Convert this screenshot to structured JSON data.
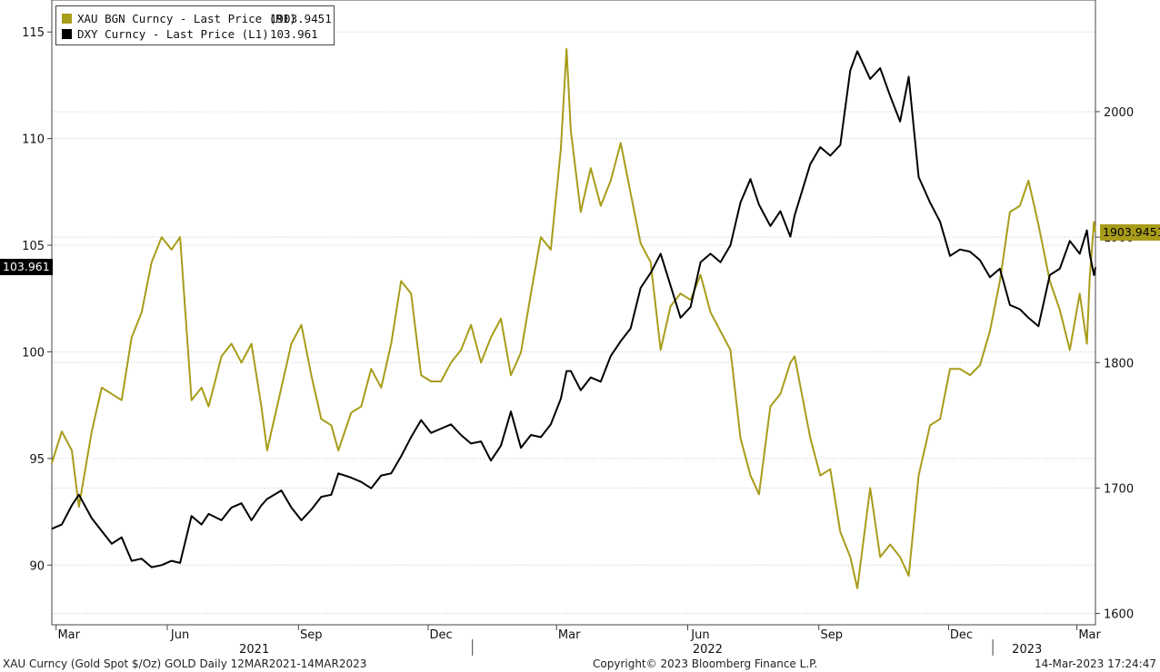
{
  "legend": [
    {
      "name": "XAU BGN Curncy - Last Price (R1)",
      "value": "1903.9451",
      "color": "#a89c1a"
    },
    {
      "name": "DXY Curncy - Last Price (L1)",
      "value": "103.961",
      "color": "#000000"
    }
  ],
  "footer": {
    "left": "XAU Curncy (Gold Spot  $/Oz) GOLD  Daily 12MAR2021-14MAR2023",
    "center": "Copyright© 2023 Bloomberg Finance L.P.",
    "right": "14-Mar-2023 17:24:47"
  },
  "chart_data": {
    "type": "line",
    "x_range": [
      "2021-03-12",
      "2023-03-14"
    ],
    "y_left": {
      "range": [
        87.2,
        116.5
      ],
      "ticks": [
        90,
        95,
        100,
        105,
        110,
        115
      ]
    },
    "y_right": {
      "range": [
        1591,
        2089
      ],
      "ticks": [
        1600,
        1700,
        1800,
        1900,
        2000
      ]
    },
    "x_ticks": [
      {
        "label": "Mar",
        "date": "2021-03-15"
      },
      {
        "label": "Jun",
        "date": "2021-06-01"
      },
      {
        "label": "Sep",
        "date": "2021-09-01"
      },
      {
        "label": "Dec",
        "date": "2021-12-01"
      },
      {
        "label": "Mar",
        "date": "2022-03-01"
      },
      {
        "label": "Jun",
        "date": "2022-06-01"
      },
      {
        "label": "Sep",
        "date": "2022-09-01"
      },
      {
        "label": "Dec",
        "date": "2022-12-01"
      },
      {
        "label": "Mar",
        "date": "2023-03-01"
      }
    ],
    "years": [
      {
        "label": "2021",
        "date": "2021-08-01"
      },
      {
        "label": "2022",
        "date": "2022-06-15"
      },
      {
        "label": "2023",
        "date": "2023-01-25"
      }
    ],
    "year_dividers": [
      "2022-01-01",
      "2023-01-01"
    ],
    "last_values": {
      "gold": "1903.9451",
      "dxy": "103.961"
    },
    "series": [
      {
        "name": "XAU BGN Curncy - Last Price (R1)",
        "axis": "right",
        "color": "#a89c1a",
        "points": [
          [
            "2021-03-12",
            1720
          ],
          [
            "2021-03-19",
            1745
          ],
          [
            "2021-03-26",
            1730
          ],
          [
            "2021-03-31",
            1685
          ],
          [
            "2021-04-09",
            1745
          ],
          [
            "2021-04-16",
            1780
          ],
          [
            "2021-04-23",
            1775
          ],
          [
            "2021-04-30",
            1770
          ],
          [
            "2021-05-07",
            1820
          ],
          [
            "2021-05-14",
            1840
          ],
          [
            "2021-05-21",
            1880
          ],
          [
            "2021-05-28",
            1900
          ],
          [
            "2021-06-04",
            1890
          ],
          [
            "2021-06-10",
            1900
          ],
          [
            "2021-06-18",
            1770
          ],
          [
            "2021-06-25",
            1780
          ],
          [
            "2021-06-30",
            1765
          ],
          [
            "2021-07-09",
            1805
          ],
          [
            "2021-07-16",
            1815
          ],
          [
            "2021-07-23",
            1800
          ],
          [
            "2021-07-30",
            1815
          ],
          [
            "2021-08-06",
            1765
          ],
          [
            "2021-08-10",
            1730
          ],
          [
            "2021-08-20",
            1780
          ],
          [
            "2021-08-27",
            1815
          ],
          [
            "2021-09-03",
            1830
          ],
          [
            "2021-09-10",
            1790
          ],
          [
            "2021-09-17",
            1755
          ],
          [
            "2021-09-24",
            1750
          ],
          [
            "2021-09-29",
            1730
          ],
          [
            "2021-10-08",
            1760
          ],
          [
            "2021-10-15",
            1765
          ],
          [
            "2021-10-22",
            1795
          ],
          [
            "2021-10-29",
            1780
          ],
          [
            "2021-11-05",
            1815
          ],
          [
            "2021-11-12",
            1865
          ],
          [
            "2021-11-19",
            1855
          ],
          [
            "2021-11-26",
            1790
          ],
          [
            "2021-12-03",
            1785
          ],
          [
            "2021-12-10",
            1785
          ],
          [
            "2021-12-17",
            1800
          ],
          [
            "2021-12-24",
            1810
          ],
          [
            "2021-12-31",
            1830
          ],
          [
            "2022-01-07",
            1800
          ],
          [
            "2022-01-14",
            1820
          ],
          [
            "2022-01-21",
            1835
          ],
          [
            "2022-01-28",
            1790
          ],
          [
            "2022-02-04",
            1808
          ],
          [
            "2022-02-11",
            1855
          ],
          [
            "2022-02-18",
            1900
          ],
          [
            "2022-02-25",
            1890
          ],
          [
            "2022-03-04",
            1970
          ],
          [
            "2022-03-08",
            2050
          ],
          [
            "2022-03-11",
            1985
          ],
          [
            "2022-03-18",
            1920
          ],
          [
            "2022-03-25",
            1955
          ],
          [
            "2022-04-01",
            1925
          ],
          [
            "2022-04-08",
            1945
          ],
          [
            "2022-04-15",
            1975
          ],
          [
            "2022-04-22",
            1935
          ],
          [
            "2022-04-29",
            1895
          ],
          [
            "2022-05-06",
            1880
          ],
          [
            "2022-05-13",
            1810
          ],
          [
            "2022-05-20",
            1845
          ],
          [
            "2022-05-27",
            1855
          ],
          [
            "2022-06-03",
            1850
          ],
          [
            "2022-06-10",
            1870
          ],
          [
            "2022-06-17",
            1840
          ],
          [
            "2022-06-24",
            1825
          ],
          [
            "2022-07-01",
            1810
          ],
          [
            "2022-07-08",
            1740
          ],
          [
            "2022-07-15",
            1710
          ],
          [
            "2022-07-21",
            1695
          ],
          [
            "2022-07-29",
            1765
          ],
          [
            "2022-08-05",
            1775
          ],
          [
            "2022-08-12",
            1800
          ],
          [
            "2022-08-15",
            1805
          ],
          [
            "2022-08-26",
            1740
          ],
          [
            "2022-09-02",
            1710
          ],
          [
            "2022-09-09",
            1715
          ],
          [
            "2022-09-16",
            1665
          ],
          [
            "2022-09-23",
            1645
          ],
          [
            "2022-09-28",
            1620
          ],
          [
            "2022-10-07",
            1700
          ],
          [
            "2022-10-14",
            1645
          ],
          [
            "2022-10-21",
            1655
          ],
          [
            "2022-10-28",
            1645
          ],
          [
            "2022-11-03",
            1630
          ],
          [
            "2022-11-10",
            1710
          ],
          [
            "2022-11-18",
            1750
          ],
          [
            "2022-11-25",
            1755
          ],
          [
            "2022-12-02",
            1795
          ],
          [
            "2022-12-09",
            1795
          ],
          [
            "2022-12-16",
            1790
          ],
          [
            "2022-12-23",
            1798
          ],
          [
            "2022-12-30",
            1825
          ],
          [
            "2023-01-06",
            1865
          ],
          [
            "2023-01-13",
            1920
          ],
          [
            "2023-01-20",
            1925
          ],
          [
            "2023-01-26",
            1945
          ],
          [
            "2023-02-02",
            1910
          ],
          [
            "2023-02-10",
            1865
          ],
          [
            "2023-02-17",
            1842
          ],
          [
            "2023-02-24",
            1810
          ],
          [
            "2023-03-03",
            1855
          ],
          [
            "2023-03-08",
            1815
          ],
          [
            "2023-03-10",
            1868
          ],
          [
            "2023-03-13",
            1912
          ],
          [
            "2023-03-14",
            1903.9451
          ]
        ]
      },
      {
        "name": "DXY Curncy - Last Price (L1)",
        "axis": "left",
        "color": "#000000",
        "points": [
          [
            "2021-03-12",
            91.7
          ],
          [
            "2021-03-19",
            91.9
          ],
          [
            "2021-03-26",
            92.8
          ],
          [
            "2021-03-31",
            93.3
          ],
          [
            "2021-04-09",
            92.2
          ],
          [
            "2021-04-16",
            91.6
          ],
          [
            "2021-04-23",
            91.0
          ],
          [
            "2021-04-30",
            91.3
          ],
          [
            "2021-05-07",
            90.2
          ],
          [
            "2021-05-14",
            90.3
          ],
          [
            "2021-05-21",
            89.9
          ],
          [
            "2021-05-28",
            90.0
          ],
          [
            "2021-06-04",
            90.2
          ],
          [
            "2021-06-10",
            90.1
          ],
          [
            "2021-06-18",
            92.3
          ],
          [
            "2021-06-25",
            91.9
          ],
          [
            "2021-06-30",
            92.4
          ],
          [
            "2021-07-09",
            92.1
          ],
          [
            "2021-07-16",
            92.7
          ],
          [
            "2021-07-23",
            92.9
          ],
          [
            "2021-07-30",
            92.1
          ],
          [
            "2021-08-06",
            92.8
          ],
          [
            "2021-08-10",
            93.1
          ],
          [
            "2021-08-20",
            93.5
          ],
          [
            "2021-08-27",
            92.7
          ],
          [
            "2021-09-03",
            92.1
          ],
          [
            "2021-09-10",
            92.6
          ],
          [
            "2021-09-17",
            93.2
          ],
          [
            "2021-09-24",
            93.3
          ],
          [
            "2021-09-29",
            94.3
          ],
          [
            "2021-10-08",
            94.1
          ],
          [
            "2021-10-15",
            93.9
          ],
          [
            "2021-10-22",
            93.6
          ],
          [
            "2021-10-29",
            94.2
          ],
          [
            "2021-11-05",
            94.3
          ],
          [
            "2021-11-12",
            95.1
          ],
          [
            "2021-11-19",
            96.0
          ],
          [
            "2021-11-26",
            96.8
          ],
          [
            "2021-12-03",
            96.2
          ],
          [
            "2021-12-10",
            96.4
          ],
          [
            "2021-12-17",
            96.6
          ],
          [
            "2021-12-24",
            96.1
          ],
          [
            "2021-12-31",
            95.7
          ],
          [
            "2022-01-07",
            95.8
          ],
          [
            "2022-01-14",
            94.9
          ],
          [
            "2022-01-21",
            95.6
          ],
          [
            "2022-01-28",
            97.2
          ],
          [
            "2022-02-04",
            95.5
          ],
          [
            "2022-02-11",
            96.1
          ],
          [
            "2022-02-18",
            96.0
          ],
          [
            "2022-02-25",
            96.6
          ],
          [
            "2022-03-04",
            97.8
          ],
          [
            "2022-03-08",
            99.1
          ],
          [
            "2022-03-11",
            99.1
          ],
          [
            "2022-03-18",
            98.2
          ],
          [
            "2022-03-25",
            98.8
          ],
          [
            "2022-04-01",
            98.6
          ],
          [
            "2022-04-08",
            99.8
          ],
          [
            "2022-04-15",
            100.5
          ],
          [
            "2022-04-22",
            101.1
          ],
          [
            "2022-04-29",
            103.0
          ],
          [
            "2022-05-06",
            103.7
          ],
          [
            "2022-05-13",
            104.6
          ],
          [
            "2022-05-20",
            103.1
          ],
          [
            "2022-05-27",
            101.6
          ],
          [
            "2022-06-03",
            102.1
          ],
          [
            "2022-06-10",
            104.2
          ],
          [
            "2022-06-17",
            104.6
          ],
          [
            "2022-06-24",
            104.2
          ],
          [
            "2022-07-01",
            105.0
          ],
          [
            "2022-07-08",
            107.0
          ],
          [
            "2022-07-15",
            108.1
          ],
          [
            "2022-07-21",
            106.9
          ],
          [
            "2022-07-29",
            105.9
          ],
          [
            "2022-08-05",
            106.6
          ],
          [
            "2022-08-12",
            105.4
          ],
          [
            "2022-08-15",
            106.4
          ],
          [
            "2022-08-26",
            108.8
          ],
          [
            "2022-09-02",
            109.6
          ],
          [
            "2022-09-09",
            109.2
          ],
          [
            "2022-09-16",
            109.7
          ],
          [
            "2022-09-23",
            113.2
          ],
          [
            "2022-09-28",
            114.1
          ],
          [
            "2022-10-07",
            112.8
          ],
          [
            "2022-10-14",
            113.3
          ],
          [
            "2022-10-21",
            112.0
          ],
          [
            "2022-10-28",
            110.8
          ],
          [
            "2022-11-03",
            112.9
          ],
          [
            "2022-11-10",
            108.2
          ],
          [
            "2022-11-18",
            107.0
          ],
          [
            "2022-11-25",
            106.1
          ],
          [
            "2022-12-02",
            104.5
          ],
          [
            "2022-12-09",
            104.8
          ],
          [
            "2022-12-16",
            104.7
          ],
          [
            "2022-12-23",
            104.3
          ],
          [
            "2022-12-30",
            103.5
          ],
          [
            "2023-01-06",
            103.9
          ],
          [
            "2023-01-13",
            102.2
          ],
          [
            "2023-01-20",
            102.0
          ],
          [
            "2023-01-26",
            101.6
          ],
          [
            "2023-02-02",
            101.2
          ],
          [
            "2023-02-10",
            103.6
          ],
          [
            "2023-02-17",
            103.9
          ],
          [
            "2023-02-24",
            105.2
          ],
          [
            "2023-03-03",
            104.6
          ],
          [
            "2023-03-08",
            105.7
          ],
          [
            "2023-03-10",
            104.6
          ],
          [
            "2023-03-13",
            103.6
          ],
          [
            "2023-03-14",
            103.961
          ]
        ]
      }
    ]
  }
}
